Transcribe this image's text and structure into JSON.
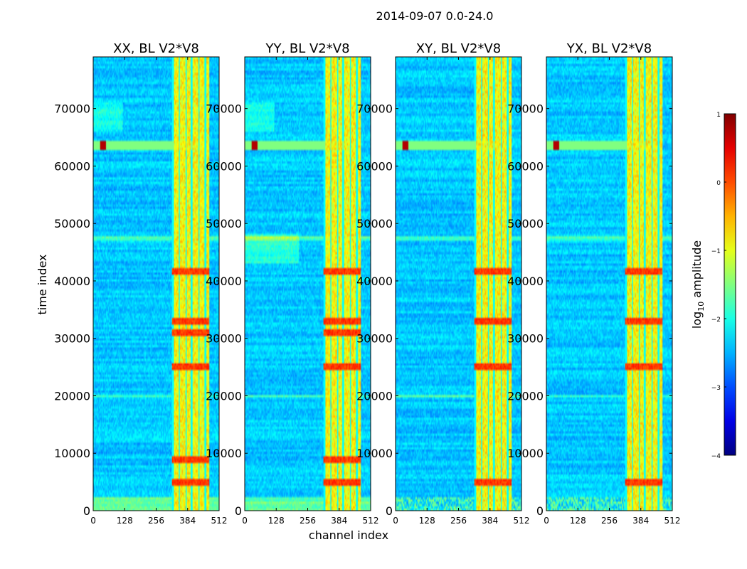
{
  "chart_data": {
    "type": "heatmap",
    "title": "2014-09-07 0.0-24.0",
    "xlabel": "channel index",
    "ylabel": "time index",
    "xlim": [
      0,
      512
    ],
    "ylim": [
      0,
      79000
    ],
    "x_ticks": [
      0,
      128,
      256,
      384,
      512
    ],
    "y_ticks": [
      0,
      10000,
      20000,
      30000,
      40000,
      50000,
      60000,
      70000
    ],
    "panels": [
      {
        "title": "XX, BL V2*V8",
        "variant": 0
      },
      {
        "title": "YY, BL V2*V8",
        "variant": 1
      },
      {
        "title": "XY, BL V2*V8",
        "variant": 2
      },
      {
        "title": "YX, BL V2*V8",
        "variant": 3
      }
    ],
    "bright_channel_band": [
      320,
      470
    ],
    "bright_channel_columns": [
      325,
      350,
      378,
      400,
      430,
      455
    ],
    "colorbar": {
      "label": "log10 amplitude",
      "label_base": "log",
      "label_sub": "10",
      "label_rest": " amplitude",
      "min": -4,
      "max": 1,
      "ticks": [
        1,
        0,
        -1,
        -2,
        -3,
        -4
      ],
      "tick_labels": [
        "1",
        "0",
        "−1",
        "−2",
        "−3",
        "−4"
      ],
      "colormap": "jet"
    }
  }
}
